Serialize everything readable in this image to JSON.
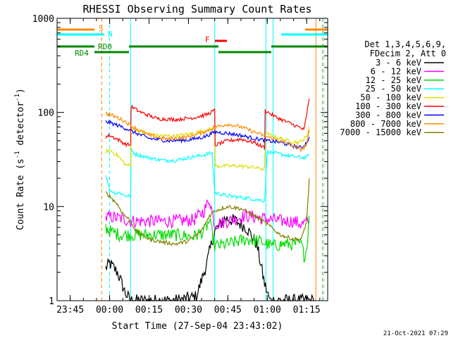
{
  "chart_data": {
    "type": "line",
    "title": "RHESSI Observing Summary Count Rates",
    "xlabel": "Start Time (27-Sep-04 23:43:02)",
    "ylabel_parts": [
      "Count Rate (s",
      "-1",
      " detector",
      "-1",
      ")"
    ],
    "yscale": "log",
    "ylim": [
      1,
      1000
    ],
    "xlim_minutes": [
      -20,
      83
    ],
    "x_ticks": [
      {
        "label": "23:45",
        "min": -15
      },
      {
        "label": "00:00",
        "min": 0
      },
      {
        "label": "00:15",
        "min": 15
      },
      {
        "label": "00:30",
        "min": 30
      },
      {
        "label": "00:45",
        "min": 45
      },
      {
        "label": "01:00",
        "min": 60
      },
      {
        "label": "01:15",
        "min": 75
      }
    ],
    "y_ticks": [
      {
        "label": "1",
        "v": 1
      },
      {
        "label": "10",
        "v": 10
      },
      {
        "label": "100",
        "v": 100
      },
      {
        "label": "1000",
        "v": 1000
      }
    ],
    "legend_header": [
      "Det 1,3,4,5,6,9,",
      "FDecim 2, Att 0"
    ],
    "series": [
      {
        "name": "3 - 6 keV",
        "color": "#000000",
        "points": [
          [
            -1.5,
            2.2
          ],
          [
            0,
            2.5
          ],
          [
            3,
            2.0
          ],
          [
            6,
            1.2
          ],
          [
            8,
            1.0
          ],
          [
            25,
            1.0
          ],
          [
            33,
            1.1
          ],
          [
            37,
            2.5
          ],
          [
            40,
            5.5
          ],
          [
            44,
            7.5
          ],
          [
            48,
            7.0
          ],
          [
            52,
            6.0
          ],
          [
            56,
            4.0
          ],
          [
            59,
            1.5
          ],
          [
            61,
            1.0
          ],
          [
            78,
            1.0
          ]
        ]
      },
      {
        "name": "6 - 12 keV",
        "color": "#ff00ff",
        "points": [
          [
            -1.5,
            7.5
          ],
          [
            0,
            7.8
          ],
          [
            4,
            7.5
          ],
          [
            8,
            7.0
          ],
          [
            15,
            7.0
          ],
          [
            25,
            7.0
          ],
          [
            32,
            7.2
          ],
          [
            36,
            9
          ],
          [
            38,
            12
          ],
          [
            40,
            6.5
          ],
          [
            45,
            7
          ],
          [
            52,
            8
          ],
          [
            58,
            7.5
          ],
          [
            66,
            7
          ],
          [
            70,
            7
          ],
          [
            73,
            6.5
          ],
          [
            76,
            7
          ]
        ]
      },
      {
        "name": "12 - 25 keV",
        "color": "#00dd00",
        "points": [
          [
            -1.5,
            6.0
          ],
          [
            0,
            5.5
          ],
          [
            4,
            5.0
          ],
          [
            8,
            5.0
          ],
          [
            15,
            5.0
          ],
          [
            25,
            5.0
          ],
          [
            32,
            4.8
          ],
          [
            36,
            5.5
          ],
          [
            38,
            7
          ],
          [
            40,
            3.8
          ],
          [
            45,
            4
          ],
          [
            52,
            4.5
          ],
          [
            58,
            4.2
          ],
          [
            62,
            3.8
          ],
          [
            66,
            4
          ],
          [
            70,
            4
          ],
          [
            73,
            4
          ],
          [
            74,
            3
          ],
          [
            75,
            3.5
          ],
          [
            76,
            8
          ]
        ]
      },
      {
        "name": "25 - 50 keV",
        "color": "#00ffff",
        "points": [
          [
            -1.5,
            22
          ],
          [
            0,
            15
          ],
          [
            2,
            14
          ],
          [
            4,
            14
          ],
          [
            6,
            13
          ],
          [
            8,
            13
          ],
          [
            8.2,
            40
          ],
          [
            10,
            36
          ],
          [
            15,
            33
          ],
          [
            20,
            31
          ],
          [
            25,
            31
          ],
          [
            30,
            33
          ],
          [
            35,
            35
          ],
          [
            39,
            37
          ],
          [
            40,
            14
          ],
          [
            45,
            13
          ],
          [
            50,
            12.5
          ],
          [
            55,
            12
          ],
          [
            59,
            11.5
          ],
          [
            60,
            38
          ],
          [
            65,
            36
          ],
          [
            70,
            34
          ],
          [
            74,
            33
          ],
          [
            76,
            35
          ]
        ]
      },
      {
        "name": "50 - 100 keV",
        "color": "#dddd00",
        "points": [
          [
            -1.5,
            38
          ],
          [
            0,
            40
          ],
          [
            3,
            35
          ],
          [
            6,
            28
          ],
          [
            8,
            27
          ],
          [
            8.2,
            70
          ],
          [
            12,
            62
          ],
          [
            18,
            57
          ],
          [
            25,
            56
          ],
          [
            32,
            60
          ],
          [
            37,
            65
          ],
          [
            40,
            68
          ],
          [
            40.2,
            27
          ],
          [
            45,
            27
          ],
          [
            50,
            27
          ],
          [
            55,
            26
          ],
          [
            59,
            25
          ],
          [
            59.2,
            60
          ],
          [
            63,
            55
          ],
          [
            68,
            50
          ],
          [
            72,
            48
          ],
          [
            75,
            55
          ],
          [
            76,
            70
          ]
        ]
      },
      {
        "name": "100 - 300 keV",
        "color": "#ff0000",
        "points": [
          [
            -1.5,
            55
          ],
          [
            0,
            57
          ],
          [
            3,
            52
          ],
          [
            6,
            46
          ],
          [
            8,
            45
          ],
          [
            8.2,
            115
          ],
          [
            12,
            100
          ],
          [
            18,
            86
          ],
          [
            25,
            84
          ],
          [
            32,
            88
          ],
          [
            37,
            95
          ],
          [
            40,
            105
          ],
          [
            40.2,
            45
          ],
          [
            45,
            50
          ],
          [
            50,
            52
          ],
          [
            55,
            48
          ],
          [
            59,
            42
          ],
          [
            59.2,
            105
          ],
          [
            63,
            90
          ],
          [
            68,
            78
          ],
          [
            72,
            70
          ],
          [
            74,
            65
          ],
          [
            76,
            140
          ]
        ]
      },
      {
        "name": "300 - 800 keV",
        "color": "#0000ff",
        "points": [
          [
            -1.5,
            80
          ],
          [
            0,
            78
          ],
          [
            3,
            73
          ],
          [
            6,
            68
          ],
          [
            9,
            62
          ],
          [
            15,
            53
          ],
          [
            22,
            50
          ],
          [
            30,
            51
          ],
          [
            36,
            55
          ],
          [
            40,
            62
          ],
          [
            45,
            60
          ],
          [
            50,
            57
          ],
          [
            55,
            53
          ],
          [
            60,
            50
          ],
          [
            65,
            48
          ],
          [
            70,
            44
          ],
          [
            73,
            42
          ],
          [
            75,
            48
          ],
          [
            76,
            55
          ]
        ]
      },
      {
        "name": "800 - 7000 keV",
        "color": "#ff8800",
        "points": [
          [
            -1.5,
            98
          ],
          [
            0,
            95
          ],
          [
            3,
            88
          ],
          [
            6,
            80
          ],
          [
            9,
            70
          ],
          [
            15,
            57
          ],
          [
            22,
            52
          ],
          [
            30,
            55
          ],
          [
            36,
            62
          ],
          [
            40,
            70
          ],
          [
            45,
            75
          ],
          [
            50,
            70
          ],
          [
            55,
            62
          ],
          [
            60,
            55
          ],
          [
            65,
            50
          ],
          [
            70,
            44
          ],
          [
            73,
            40
          ],
          [
            75,
            45
          ],
          [
            76,
            65
          ]
        ]
      },
      {
        "name": "7000 - 15000 keV",
        "color": "#808000",
        "points": [
          [
            -1.5,
            14
          ],
          [
            0,
            13
          ],
          [
            3,
            10.5
          ],
          [
            5,
            8.5
          ],
          [
            8,
            7
          ],
          [
            10,
            5.5
          ],
          [
            15,
            4.5
          ],
          [
            20,
            4.2
          ],
          [
            25,
            4.0
          ],
          [
            30,
            4.3
          ],
          [
            35,
            5.5
          ],
          [
            38,
            8
          ],
          [
            40,
            9
          ],
          [
            45,
            10
          ],
          [
            50,
            9.5
          ],
          [
            55,
            8
          ],
          [
            60,
            6.5
          ],
          [
            65,
            5
          ],
          [
            70,
            4.5
          ],
          [
            73,
            4.5
          ],
          [
            75,
            7
          ],
          [
            76,
            20
          ]
        ]
      }
    ],
    "annotations": {
      "S_label": "S",
      "N_label": "N",
      "F_label": "F",
      "RD0_label": "RD0",
      "RD4_label": "RD4",
      "S_color": "#ff8800",
      "N_color": "#00ffff",
      "F_color": "#ff0000",
      "RD_color": "#008800"
    },
    "vlines": [
      {
        "min": -20,
        "color": "#00ffff",
        "dash": false
      },
      {
        "min": -3,
        "color": "#ff8800",
        "dash": true
      },
      {
        "min": 0,
        "color": "#00ffff",
        "dash": true
      },
      {
        "min": 8,
        "color": "#00ffff",
        "dash": false
      },
      {
        "min": 40,
        "color": "#00ffff",
        "dash": false
      },
      {
        "min": 59.5,
        "color": "#00ffff",
        "dash": false
      },
      {
        "min": 62.2,
        "color": "#00ffff",
        "dash": false
      },
      {
        "min": 78.5,
        "color": "#ff8800",
        "dash": false
      },
      {
        "min": 81,
        "color": "#ff8800",
        "dash": true
      },
      {
        "min": 81.5,
        "color": "#00ffff",
        "dash": true
      }
    ],
    "footer_date": "21-Oct-2021 07:29"
  }
}
